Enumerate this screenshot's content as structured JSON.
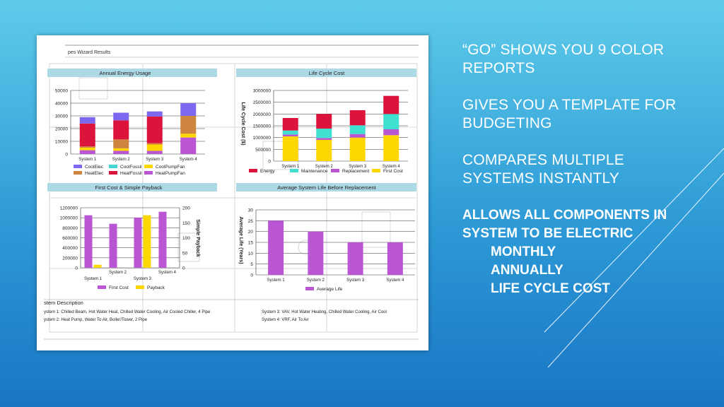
{
  "slide": {
    "bullets": [
      "“GO” SHOWS YOU 9 COLOR REPORTS",
      "GIVES YOU A TEMPLATE FOR BUDGETING",
      "COMPARES MULTIPLE SYSTEMS INSTANTLY"
    ],
    "bold_heading": "ALLOWS ALL COMPONENTS IN SYSTEM TO BE ELECTRIC",
    "sub_items": [
      "MONTHLY",
      "ANNUALLY",
      "LIFE CYCLE COST"
    ]
  },
  "report": {
    "title": "pes Wizard Results",
    "description_heading": "stem Description",
    "descriptions": [
      "ystem  1: Chilled Beam, Hot Water Heat, Chilled Water Cooling, Air Cooled Chiller, 4 Pipe",
      "ystem  2: Heat Pump, Water To Air, Boiler/Tower, 2 Pipe",
      "System  3: VAV, Hot Water Heating, Chilled Water Cooling, Air Cool",
      "System  4: VRF, Air To Air"
    ]
  },
  "colors": {
    "CoolElec": "#7b68ee",
    "CoolFossil": "#45d3d3",
    "CoolPumpFan": "#ffd700",
    "HeatElec": "#cd853f",
    "HeatFossil": "#dc143c",
    "HeatPumpFan": "#ba55d3",
    "Energy": "#dc143c",
    "Maintenance": "#40e0d0",
    "Replacement": "#ba55d3",
    "FirstCost": "#ffd700",
    "Payback": "#ffd700",
    "AvgLife": "#ba55d3",
    "header_bg": "#add8e6"
  },
  "chart_data": [
    {
      "type": "bar",
      "stacked": true,
      "title": "Annual Energy Usage",
      "categories": [
        "System 1",
        "System 2",
        "System 3",
        "System 4"
      ],
      "ylim": [
        0,
        50000
      ],
      "yticks": [
        "50000",
        "40000",
        "30000",
        "20000",
        "10000",
        "0"
      ],
      "series": [
        {
          "name": "HeatPumpFan",
          "color": "#ba55d3",
          "values": [
            3000,
            2500,
            2500,
            13000
          ]
        },
        {
          "name": "CoolPumpFan",
          "color": "#ffd700",
          "values": [
            2000,
            2000,
            5000,
            3000
          ]
        },
        {
          "name": "HeatElec",
          "color": "#cd853f",
          "values": [
            1000,
            1000,
            1000,
            0
          ]
        },
        {
          "name": "HeatFossil",
          "color": "#dc143c",
          "values": [
            18000,
            15000,
            21000,
            0
          ]
        },
        {
          "name": "CoolFossil",
          "color": "#45d3d3",
          "values": [
            0,
            0,
            0,
            0
          ]
        },
        {
          "name": "CoolElec",
          "color": "#7b68ee",
          "values": [
            5000,
            6000,
            4000,
            10000
          ]
        }
      ],
      "series_extra": [
        {
          "name": "HeatElec4",
          "values": [
            0,
            7000,
            0,
            14000
          ]
        }
      ],
      "legend": [
        "CoolElec",
        "CoolFossil",
        "CoolPumpFan",
        "HeatElec",
        "HeatFossil",
        "HeatPumpFan"
      ]
    },
    {
      "type": "bar",
      "stacked": true,
      "title": "Life Cycle Cost",
      "ylabel": "Life Cycle Cost ($)",
      "categories": [
        "System 1",
        "System 2",
        "System 3",
        "System 4"
      ],
      "ylim": [
        0,
        3000000
      ],
      "yticks": [
        "3000000",
        "2500000",
        "2000000",
        "1500000",
        "1000000",
        "500000",
        "0"
      ],
      "series": [
        {
          "name": "First Cost",
          "color": "#ffd700",
          "values": [
            1050000,
            900000,
            1000000,
            1100000
          ]
        },
        {
          "name": "Replacement",
          "color": "#ba55d3",
          "values": [
            80000,
            80000,
            150000,
            250000
          ]
        },
        {
          "name": "Maintenance",
          "color": "#40e0d0",
          "values": [
            170000,
            400000,
            370000,
            650000
          ]
        },
        {
          "name": "Energy",
          "color": "#dc143c",
          "values": [
            530000,
            620000,
            640000,
            770000
          ]
        }
      ],
      "legend": [
        "Energy",
        "Maintenance",
        "Replacement",
        "First Cost"
      ]
    },
    {
      "type": "bar",
      "title": "First Cost & Simple Payback",
      "ylabel2": "Simple Payback",
      "categories": [
        "System 1",
        "System 2",
        "System 3",
        "System 4"
      ],
      "ylim": [
        0,
        1200000
      ],
      "y2lim": [
        0,
        200
      ],
      "yticks": [
        "1200000",
        "1000000",
        "800000",
        "600000",
        "400000",
        "200000",
        "0"
      ],
      "y2ticks": [
        "200",
        "150",
        "100",
        "50",
        "0"
      ],
      "series": [
        {
          "name": "First Cost",
          "color": "#ba55d3",
          "values": [
            1050000,
            880000,
            1000000,
            1120000
          ]
        },
        {
          "name": "Payback",
          "color": "#ffd700",
          "axis": "y2",
          "values": [
            10,
            0,
            175,
            0
          ]
        }
      ],
      "legend": [
        "First Cost",
        "Payback"
      ]
    },
    {
      "type": "bar",
      "title": "Average System Life Before Replacement",
      "ylabel": "Average Life (Years)",
      "categories": [
        "System 1",
        "System 2",
        "System 3",
        "System 4"
      ],
      "ylim": [
        0,
        30
      ],
      "yticks": [
        "30",
        "25",
        "20",
        "15",
        "10",
        "5",
        "0"
      ],
      "series": [
        {
          "name": "Average Life",
          "color": "#ba55d3",
          "values": [
            25,
            20,
            15,
            15
          ]
        }
      ],
      "legend": [
        "Average Life"
      ]
    }
  ]
}
